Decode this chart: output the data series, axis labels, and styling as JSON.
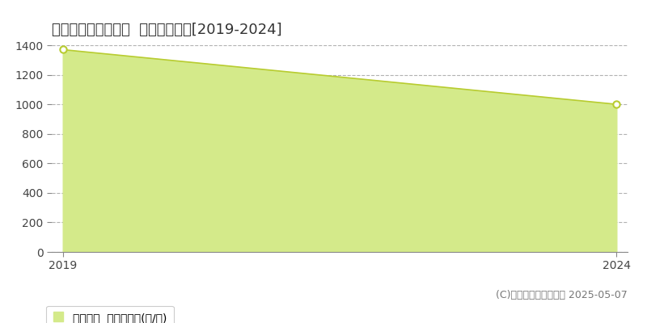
{
  "title": "栃木市大平町下皆川  農地価格推移[2019-2024]",
  "years": [
    2019,
    2024
  ],
  "values": [
    1370,
    1000
  ],
  "fill_color": "#d4ea8a",
  "line_color": "#b8cc30",
  "marker_color": "#ffffff",
  "marker_edge_color": "#b8cc30",
  "ylim": [
    0,
    1400
  ],
  "yticks": [
    0,
    200,
    400,
    600,
    800,
    1000,
    1200,
    1400
  ],
  "xlim_start": 2019,
  "xlim_end": 2024,
  "background_color": "#ffffff",
  "plot_bg_color": "#ffffff",
  "grid_color": "#aaaaaa",
  "legend_label": "農地価格  平均坪単価(円/坪)",
  "copyright_text": "(C)土地価格ドットコム 2025-05-07",
  "title_fontsize": 13,
  "tick_fontsize": 10,
  "legend_fontsize": 10,
  "copyright_fontsize": 9
}
